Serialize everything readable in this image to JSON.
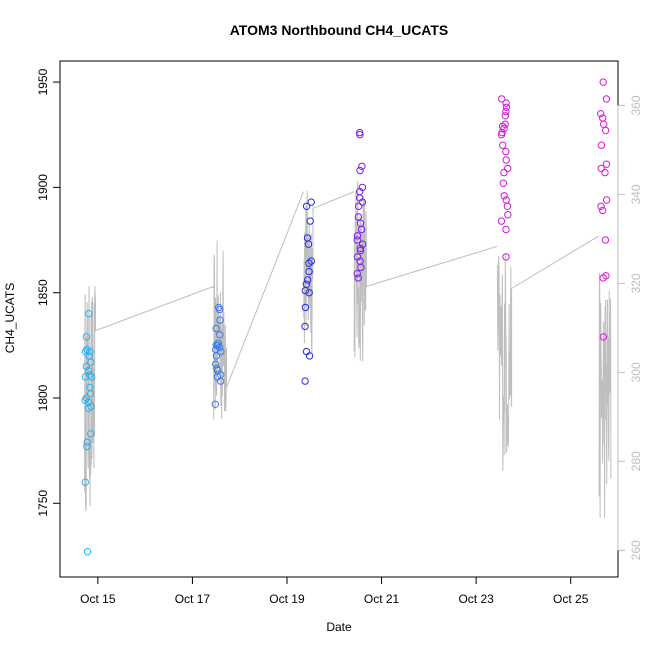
{
  "chart_data": {
    "type": "scatter",
    "title": "ATOM3 Northbound CH4_UCATS",
    "xlabel": "Date",
    "ylabel": "CH4_UCATS",
    "x_ticks": [
      "Oct 15",
      "Oct 17",
      "Oct 19",
      "Oct 21",
      "Oct 23",
      "Oct 25"
    ],
    "x_tick_values": [
      15,
      17,
      19,
      21,
      23,
      25
    ],
    "xlim": [
      14.2,
      26.0
    ],
    "ylim": [
      1715,
      1960
    ],
    "y_ticks": [
      1750,
      1800,
      1850,
      1900,
      1950
    ],
    "y2_ticks": [
      260,
      280,
      300,
      320,
      340,
      360
    ],
    "y2lim": [
      254,
      370
    ],
    "right_axis_color": "#bebebe",
    "line_color": "#bebebe",
    "series": [
      {
        "color": "#29b2ee",
        "x": 14.8,
        "y": [
          1840,
          1829,
          1823,
          1822,
          1822,
          1820,
          1817,
          1815,
          1813,
          1811,
          1810,
          1810,
          1805,
          1802,
          1800,
          1799,
          1798,
          1796,
          1795,
          1783,
          1779,
          1777,
          1760,
          1727
        ]
      },
      {
        "color": "#3d79e8",
        "x": 17.55,
        "y": [
          1843,
          1842,
          1837,
          1833,
          1830,
          1826,
          1825,
          1825,
          1824,
          1823,
          1822,
          1820,
          1816,
          1814,
          1813,
          1811,
          1810,
          1808,
          1797
        ]
      },
      {
        "color": "#2a2ce0",
        "x": 19.45,
        "y": [
          1893,
          1891,
          1884,
          1876,
          1873,
          1865,
          1864,
          1860,
          1856,
          1854,
          1851,
          1850,
          1843,
          1834,
          1822,
          1820,
          1808
        ]
      },
      {
        "color": "#7a22e6",
        "x": 20.55,
        "y": [
          1926,
          1925,
          1910,
          1908,
          1900,
          1898,
          1895,
          1893,
          1891,
          1886,
          1883,
          1880,
          1877,
          1875,
          1873,
          1871,
          1870,
          1867,
          1865,
          1862,
          1859,
          1857
        ]
      },
      {
        "color": "#cf1bd6",
        "x": 23.6,
        "y": [
          1942,
          1940,
          1938,
          1936,
          1934,
          1930,
          1929,
          1928,
          1926,
          1925,
          1920,
          1917,
          1913,
          1909,
          1907,
          1902,
          1896,
          1894,
          1891,
          1887,
          1884,
          1880,
          1867
        ]
      },
      {
        "color": "#e018d4",
        "x": 25.7,
        "y": [
          1950,
          1942,
          1935,
          1933,
          1930,
          1927,
          1920,
          1911,
          1909,
          1907,
          1894,
          1891,
          1889,
          1875,
          1858,
          1857,
          1829
        ]
      }
    ]
  }
}
